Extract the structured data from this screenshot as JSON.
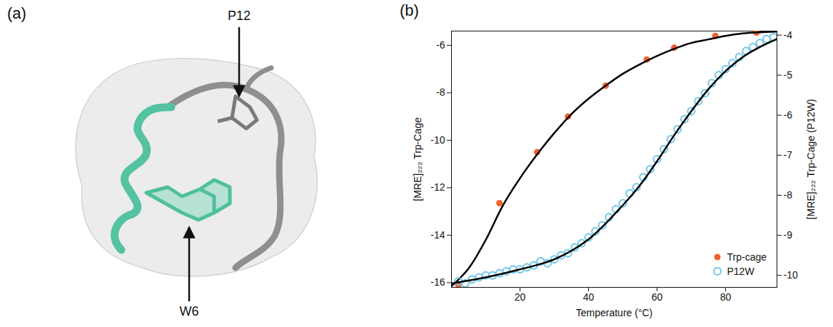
{
  "panel_a": {
    "label": "(a)",
    "annotations": [
      "P12",
      "W6"
    ]
  },
  "chart_data": {
    "type": "scatter",
    "panel_label": "(b)",
    "xlabel": "Temperature (°C)",
    "ylabel": "[MRE]₂₂₂ Trp-Cage",
    "y2label": "[MRE]₂₂₂ Trp-Cage (P12W)",
    "xlim": [
      0,
      95
    ],
    "xticks": [
      20,
      40,
      60,
      80
    ],
    "ylim": [
      -16.2,
      -5.4
    ],
    "yticks": [
      -16,
      -14,
      -12,
      -10,
      -8,
      -6
    ],
    "y2lim": [
      -10.3,
      -3.9
    ],
    "y2ticks": [
      -10,
      -9,
      -8,
      -7,
      -6,
      -5,
      -4
    ],
    "grid": false,
    "legend": "lower right",
    "series": [
      {
        "name": "Trp-cage",
        "color": "#f0622d",
        "marker": "circle",
        "axis": "y",
        "x": [
          2,
          14,
          25,
          34,
          45,
          57,
          65,
          77,
          89
        ],
        "values": [
          -16.1,
          -12.65,
          -10.5,
          -9.0,
          -7.7,
          -6.6,
          -6.1,
          -5.6,
          -5.47
        ],
        "fit": {
          "color": "#000000",
          "line_style": "solid",
          "x": [
            0,
            5,
            10,
            15,
            20,
            25,
            30,
            35,
            40,
            45,
            50,
            55,
            60,
            65,
            70,
            75,
            80,
            85,
            90,
            95
          ],
          "values": [
            -16.15,
            -15.4,
            -14.2,
            -12.75,
            -11.6,
            -10.6,
            -9.7,
            -8.9,
            -8.25,
            -7.7,
            -7.2,
            -6.8,
            -6.45,
            -6.15,
            -5.9,
            -5.75,
            -5.6,
            -5.5,
            -5.45,
            -5.42
          ]
        }
      },
      {
        "name": "P12W",
        "color": "#6ec6ea",
        "marker": "circle_open",
        "axis": "y2",
        "x": [
          2,
          4,
          6,
          8,
          10,
          12,
          14,
          16,
          18,
          20,
          22,
          24,
          26,
          28,
          30,
          32,
          34,
          36,
          38,
          40,
          42,
          44,
          46,
          48,
          50,
          52,
          54,
          56,
          58,
          60,
          62,
          64,
          66,
          68,
          70,
          72,
          74,
          76,
          78,
          80,
          82,
          84,
          86,
          88,
          90,
          92,
          94
        ],
        "values": [
          -10.15,
          -10.2,
          -10.1,
          -10.05,
          -10.0,
          -10.0,
          -9.95,
          -9.9,
          -9.85,
          -9.85,
          -9.8,
          -9.75,
          -9.65,
          -9.7,
          -9.6,
          -9.5,
          -9.45,
          -9.3,
          -9.2,
          -9.05,
          -8.9,
          -8.75,
          -8.55,
          -8.35,
          -8.2,
          -7.95,
          -7.8,
          -7.55,
          -7.35,
          -7.1,
          -6.85,
          -6.6,
          -6.35,
          -6.1,
          -5.9,
          -5.65,
          -5.45,
          -5.2,
          -5.0,
          -4.85,
          -4.7,
          -4.55,
          -4.4,
          -4.3,
          -4.2,
          -4.1,
          -4.05
        ],
        "fit": {
          "color": "#000000",
          "line_style": "solid",
          "x": [
            0,
            10,
            20,
            30,
            40,
            50,
            55,
            60,
            65,
            70,
            75,
            80,
            85,
            90,
            95
          ],
          "values": [
            -10.2,
            -10.05,
            -9.85,
            -9.6,
            -9.1,
            -8.25,
            -7.75,
            -7.15,
            -6.5,
            -5.9,
            -5.35,
            -4.9,
            -4.55,
            -4.3,
            -4.1
          ]
        }
      }
    ]
  }
}
